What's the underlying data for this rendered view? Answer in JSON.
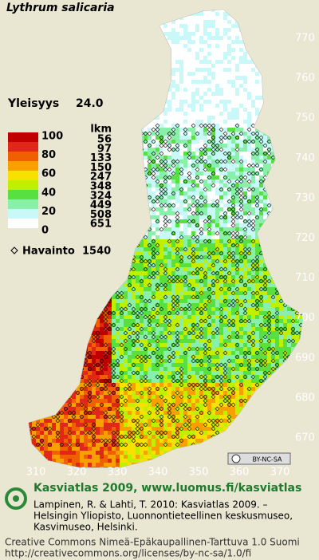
{
  "title": "Lythrum salicaria",
  "frequency": {
    "label": "Yleisyys",
    "value": "24.0"
  },
  "legend": {
    "percent_labels": [
      100,
      80,
      60,
      40,
      20,
      0
    ],
    "count_header": "lkm",
    "counts": [
      56,
      97,
      133,
      150,
      247,
      348,
      324,
      449,
      508,
      651
    ],
    "colors": [
      "#c00000",
      "#e02818",
      "#f06000",
      "#f8a000",
      "#f8e000",
      "#c0f000",
      "#58e040",
      "#88f0a8",
      "#c8f8f8",
      "#ffffff"
    ]
  },
  "observations": {
    "label": "Havainto",
    "count": 1540
  },
  "grid": {
    "northing": [
      770,
      760,
      750,
      740,
      730,
      720,
      710,
      700,
      690,
      680,
      670
    ],
    "easting": [
      310,
      320,
      330,
      340,
      350,
      360,
      370
    ]
  },
  "license_badge": "BY-NC-SA",
  "footer": {
    "heading": "Kasviatlas 2009, www.luomus.fi/kasviatlas",
    "citation": [
      "Lampinen, R. & Lahti, T. 2010: Kasviatlas 2009. –",
      "Helsingin Yliopisto, Luonnontieteellinen keskusmuseo,",
      "Kasvimuseo, Helsinki."
    ],
    "license": [
      "Creative Commons Nimeä-Epäkaupallinen-Tarttuva 1.0 Suomi",
      "http://creativecommons.org/licenses/by-nc-sa/1.0/fi"
    ]
  }
}
